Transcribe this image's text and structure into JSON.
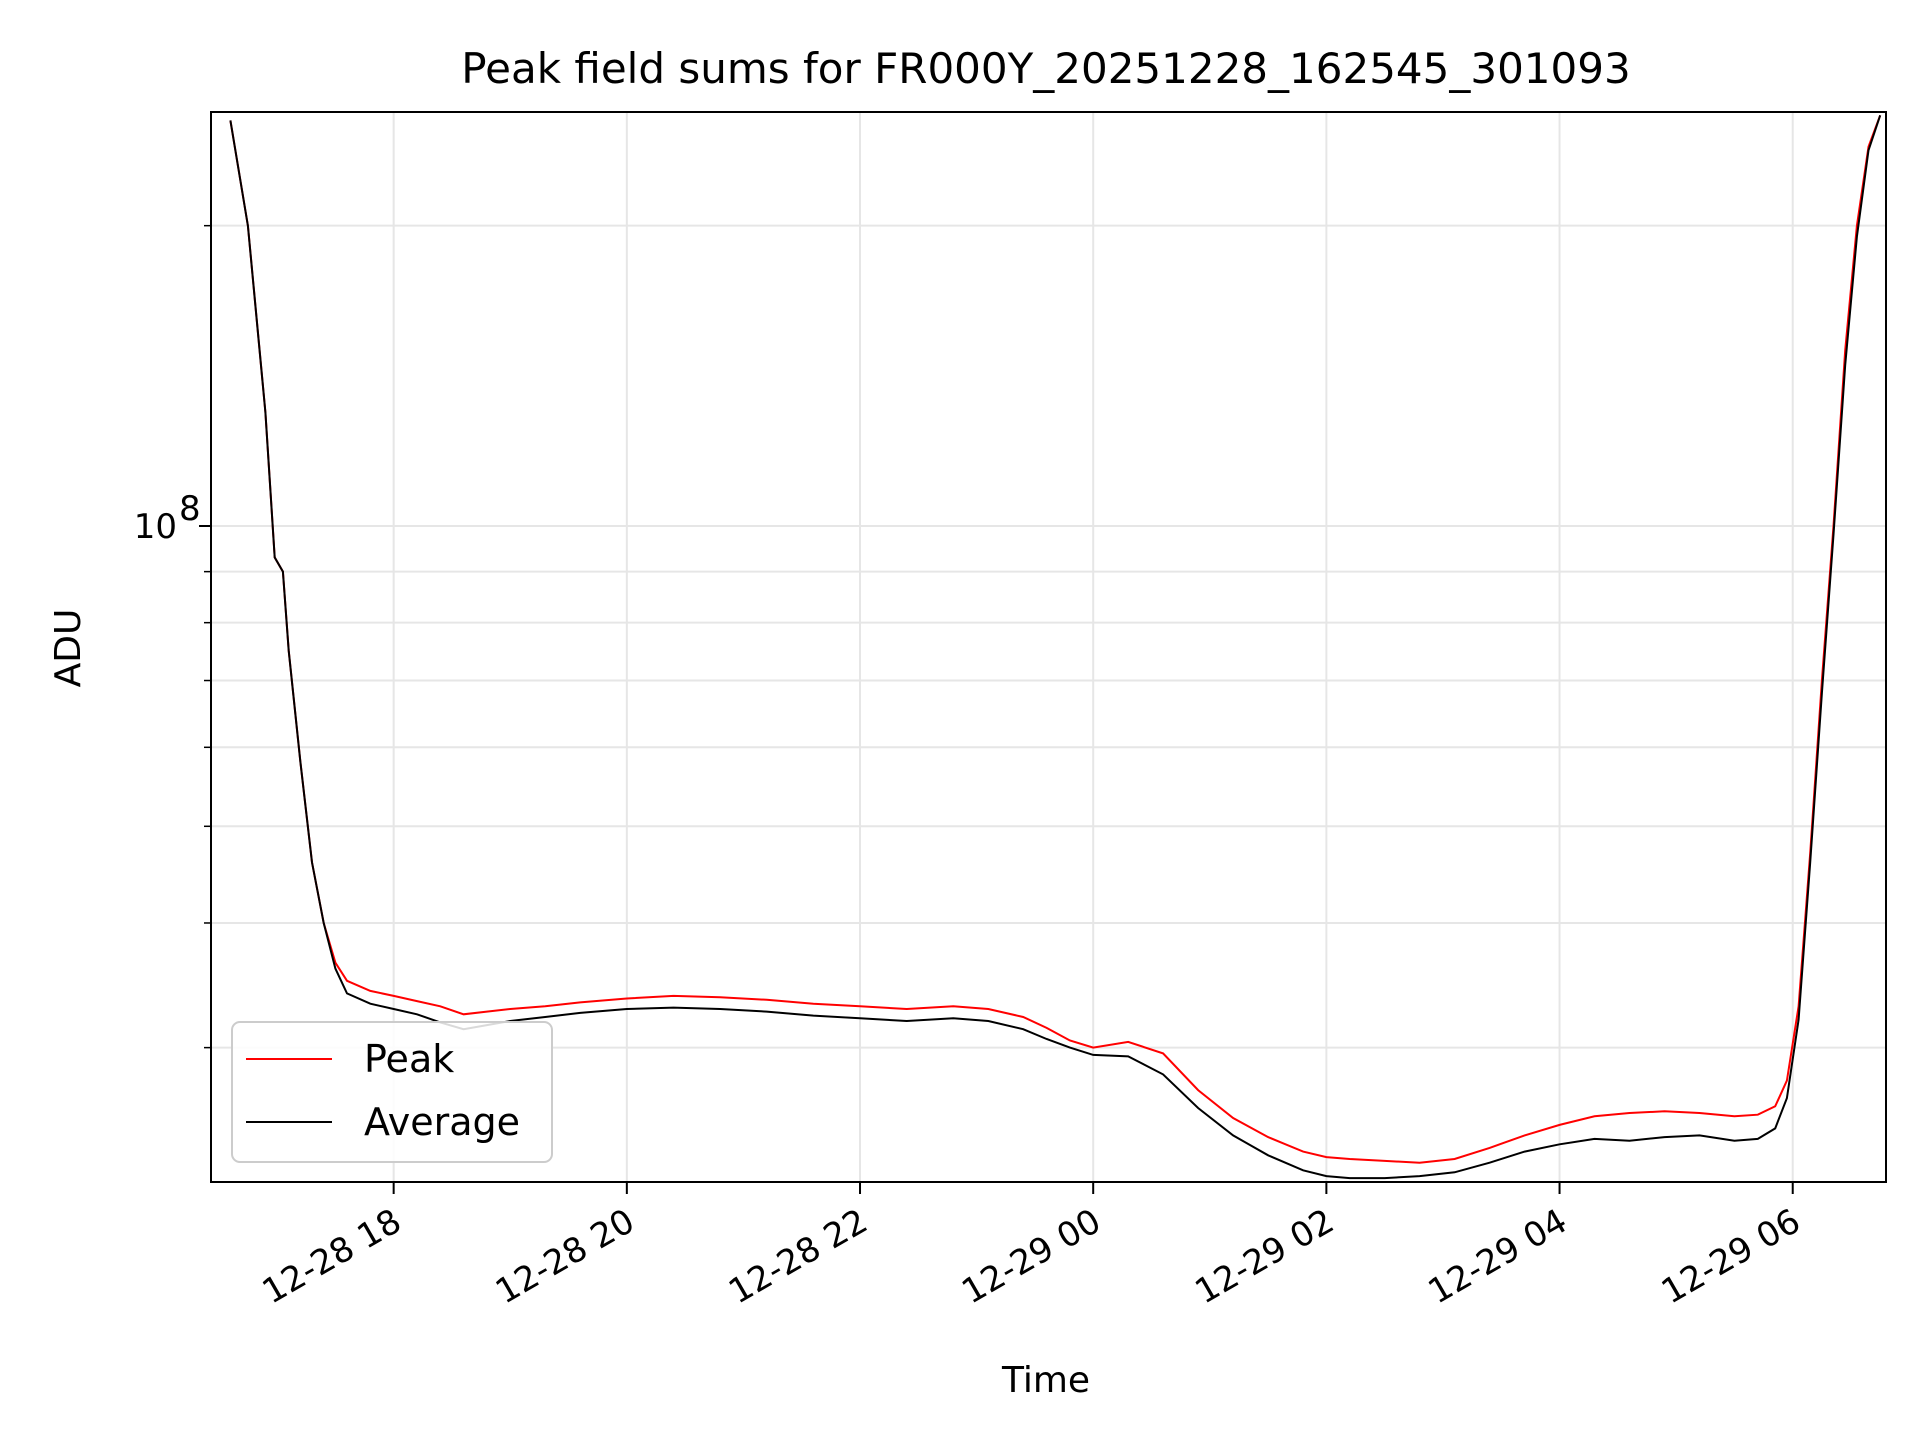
{
  "chart_data": {
    "type": "line",
    "title": "Peak field sums for FR000Y_20251228_162545_301093",
    "xlabel": "Time",
    "ylabel": "ADU",
    "yscale": "log",
    "ylim": [
      22000000,
      260000000
    ],
    "xlim": [
      16.4333,
      30.8
    ],
    "grid": true,
    "legend_position": "lower-left",
    "x_ticks": [
      {
        "value": 18,
        "label": "12-28 18"
      },
      {
        "value": 20,
        "label": "12-28 20"
      },
      {
        "value": 22,
        "label": "12-28 22"
      },
      {
        "value": 24,
        "label": "12-29 00"
      },
      {
        "value": 26,
        "label": "12-29 02"
      },
      {
        "value": 28,
        "label": "12-29 04"
      },
      {
        "value": 30,
        "label": "12-29 06"
      }
    ],
    "y_major_ticks": [
      {
        "value": 100000000,
        "base": "10",
        "exp": "8"
      }
    ],
    "y_minor_ticks": [
      30000000,
      40000000,
      50000000,
      60000000,
      70000000,
      80000000,
      90000000,
      200000000
    ],
    "series": [
      {
        "name": "Peak",
        "color": "#ff0000",
        "x": [
          16.6,
          16.75,
          16.9,
          16.98,
          17.05,
          17.1,
          17.2,
          17.3,
          17.4,
          17.5,
          17.6,
          17.8,
          18.0,
          18.2,
          18.4,
          18.6,
          18.8,
          19.0,
          19.3,
          19.6,
          20.0,
          20.4,
          20.8,
          21.2,
          21.6,
          22.0,
          22.4,
          22.8,
          23.1,
          23.4,
          23.6,
          23.8,
          24.0,
          24.3,
          24.6,
          24.9,
          25.2,
          25.5,
          25.8,
          26.0,
          26.2,
          26.5,
          26.8,
          27.1,
          27.4,
          27.7,
          28.0,
          28.3,
          28.6,
          28.9,
          29.2,
          29.5,
          29.7,
          29.85,
          29.95,
          30.05,
          30.15,
          30.25,
          30.35,
          30.45,
          30.55,
          30.65,
          30.75
        ],
        "y": [
          255000000,
          200000000,
          130000000,
          93000000,
          90000000,
          75000000,
          58000000,
          46000000,
          40000000,
          36500000,
          35000000,
          34200000,
          33800000,
          33400000,
          33000000,
          32400000,
          32600000,
          32800000,
          33000000,
          33300000,
          33600000,
          33800000,
          33700000,
          33500000,
          33200000,
          33000000,
          32800000,
          33000000,
          32800000,
          32200000,
          31400000,
          30500000,
          30000000,
          30400000,
          29600000,
          27200000,
          25500000,
          24400000,
          23600000,
          23300000,
          23200000,
          23100000,
          23000000,
          23200000,
          23800000,
          24500000,
          25100000,
          25600000,
          25800000,
          25900000,
          25800000,
          25600000,
          25700000,
          26200000,
          27800000,
          33000000,
          47000000,
          70000000,
          100000000,
          150000000,
          200000000,
          240000000,
          258000000
        ]
      },
      {
        "name": "Average",
        "color": "#000000",
        "x": [
          16.6,
          16.75,
          16.9,
          16.98,
          17.05,
          17.1,
          17.2,
          17.3,
          17.4,
          17.5,
          17.6,
          17.8,
          18.0,
          18.2,
          18.4,
          18.6,
          18.8,
          19.0,
          19.3,
          19.6,
          20.0,
          20.4,
          20.8,
          21.2,
          21.6,
          22.0,
          22.4,
          22.8,
          23.1,
          23.4,
          23.6,
          23.8,
          24.0,
          24.3,
          24.6,
          24.9,
          25.2,
          25.5,
          25.8,
          26.0,
          26.2,
          26.5,
          26.8,
          27.1,
          27.4,
          27.7,
          28.0,
          28.3,
          28.6,
          28.9,
          29.2,
          29.5,
          29.7,
          29.85,
          29.95,
          30.05,
          30.15,
          30.25,
          30.35,
          30.45,
          30.55,
          30.65,
          30.75
        ],
        "y": [
          255000000,
          200000000,
          130000000,
          93000000,
          90000000,
          75000000,
          58000000,
          46000000,
          40000000,
          36000000,
          34000000,
          33200000,
          32800000,
          32400000,
          31800000,
          31300000,
          31600000,
          31900000,
          32200000,
          32500000,
          32800000,
          32900000,
          32800000,
          32600000,
          32300000,
          32100000,
          31900000,
          32100000,
          31900000,
          31300000,
          30600000,
          30000000,
          29500000,
          29400000,
          28200000,
          26100000,
          24500000,
          23400000,
          22600000,
          22300000,
          22200000,
          22200000,
          22300000,
          22500000,
          23000000,
          23600000,
          24000000,
          24300000,
          24200000,
          24400000,
          24500000,
          24200000,
          24300000,
          24900000,
          26700000,
          32000000,
          46000000,
          68000000,
          98000000,
          145000000,
          195000000,
          238000000,
          258000000
        ]
      }
    ]
  }
}
